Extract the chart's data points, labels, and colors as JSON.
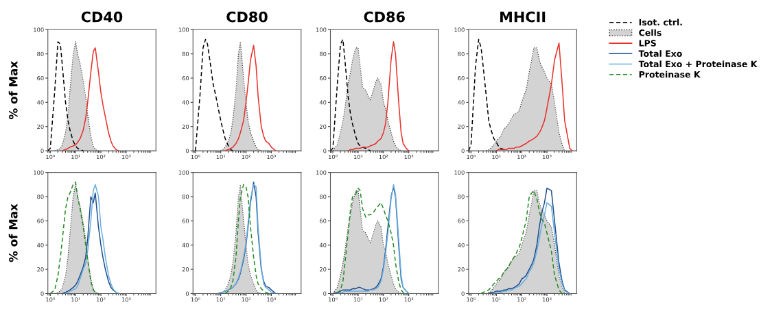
{
  "chart_data": [
    {
      "type": "line",
      "title": "CD40",
      "ylabel": "% of Max",
      "log": "x",
      "legend": "right",
      "x": [
        0.8,
        1,
        1.5,
        2,
        2.5,
        3,
        4,
        5,
        6,
        8,
        10,
        12,
        15,
        20,
        25,
        30,
        40,
        50,
        60,
        80,
        100,
        120,
        150,
        200,
        250,
        300,
        400,
        500
      ],
      "xlim": [
        0.8,
        15000
      ],
      "ylim": [
        0,
        100
      ],
      "xticks": [
        {
          "value": 1,
          "label": "10⁰"
        },
        {
          "value": 10,
          "label": "10¹"
        },
        {
          "value": 100,
          "label": "10²"
        },
        {
          "value": 1000,
          "label": "10³"
        }
      ],
      "yticks": [
        0,
        20,
        40,
        60,
        80,
        100
      ],
      "series": [
        {
          "name": "Isot. ctrl.",
          "line_style": "dashed",
          "color": "#000000",
          "values": [
            0,
            2,
            50,
            90,
            88,
            70,
            40,
            25,
            17,
            8,
            4,
            2,
            1,
            0,
            null,
            null,
            null,
            null,
            null,
            null,
            null,
            null,
            null,
            null,
            null,
            null,
            null,
            null
          ]
        },
        {
          "name": "Cells",
          "type": "area",
          "line_style": "dotted",
          "color": "#d3d3d3",
          "values": [
            null,
            null,
            0,
            1,
            2,
            5,
            15,
            30,
            50,
            80,
            90,
            80,
            72,
            58,
            45,
            30,
            12,
            4,
            1,
            0,
            null,
            null,
            null,
            null,
            null,
            null,
            null,
            null
          ]
        },
        {
          "name": "LPS",
          "line_style": "solid",
          "color": "#e8302a",
          "values": [
            null,
            null,
            null,
            null,
            null,
            0,
            1,
            2,
            3,
            4,
            5,
            7,
            10,
            17,
            27,
            40,
            65,
            82,
            85,
            65,
            48,
            38,
            28,
            15,
            8,
            4,
            1,
            0
          ]
        }
      ]
    },
    {
      "type": "line",
      "title": "CD80",
      "log": "x",
      "x": [
        1,
        1.5,
        2,
        2.5,
        3,
        4,
        5,
        6,
        8,
        10,
        12,
        15,
        20,
        25,
        30,
        40,
        50,
        60,
        80,
        100,
        120,
        150,
        200,
        250,
        300,
        400,
        500,
        600,
        800,
        1000,
        1500
      ],
      "xlim": [
        0.8,
        15000
      ],
      "ylim": [
        0,
        100
      ],
      "xticks": [
        {
          "value": 1,
          "label": "10⁰"
        },
        {
          "value": 10,
          "label": "10¹"
        },
        {
          "value": 100,
          "label": "10²"
        },
        {
          "value": 1000,
          "label": "10³"
        }
      ],
      "yticks": [
        0,
        20,
        40,
        60,
        80,
        100
      ],
      "series": [
        {
          "line_style": "dashed",
          "color": "#000000",
          "values": [
            0,
            45,
            85,
            92,
            88,
            70,
            55,
            48,
            35,
            25,
            18,
            10,
            4,
            1,
            0,
            null,
            null,
            null,
            null,
            null,
            null,
            null,
            null,
            null,
            null,
            null,
            null,
            null,
            null,
            null,
            null
          ]
        },
        {
          "type": "area",
          "line_style": "dotted",
          "color": "#d3d3d3",
          "values": [
            null,
            null,
            null,
            null,
            null,
            null,
            null,
            null,
            null,
            0,
            1,
            3,
            8,
            15,
            25,
            50,
            80,
            90,
            60,
            40,
            25,
            15,
            8,
            3,
            1,
            0,
            null,
            null,
            null,
            null,
            null
          ]
        },
        {
          "line_style": "solid",
          "color": "#e8302a",
          "values": [
            null,
            null,
            null,
            null,
            null,
            null,
            null,
            null,
            null,
            null,
            null,
            0,
            1,
            2,
            3,
            6,
            10,
            15,
            25,
            40,
            55,
            75,
            87,
            70,
            45,
            20,
            12,
            8,
            6,
            3,
            0
          ]
        }
      ]
    },
    {
      "type": "line",
      "title": "CD86",
      "log": "x",
      "x": [
        0.8,
        1,
        1.5,
        2,
        2.5,
        3,
        4,
        5,
        6,
        8,
        10,
        12,
        15,
        20,
        25,
        30,
        40,
        50,
        60,
        80,
        100,
        120,
        150,
        200,
        250,
        300,
        400,
        500,
        600,
        800,
        1000
      ],
      "xlim": [
        0.8,
        15000
      ],
      "ylim": [
        0,
        100
      ],
      "xticks": [
        {
          "value": 1,
          "label": "10⁰"
        },
        {
          "value": 10,
          "label": "10¹"
        },
        {
          "value": 100,
          "label": "10²"
        },
        {
          "value": 1000,
          "label": "10³"
        }
      ],
      "yticks": [
        0,
        20,
        40,
        60,
        80,
        100
      ],
      "series": [
        {
          "line_style": "dashed",
          "color": "#000000",
          "values": [
            0,
            2,
            55,
            88,
            92,
            75,
            45,
            30,
            22,
            12,
            6,
            4,
            3,
            2,
            1,
            0,
            null,
            null,
            null,
            null,
            null,
            null,
            null,
            null,
            null,
            null,
            null,
            null,
            null,
            null,
            null
          ]
        },
        {
          "type": "area",
          "line_style": "dotted",
          "color": "#d3d3d3",
          "values": [
            null,
            0,
            5,
            15,
            25,
            35,
            55,
            65,
            75,
            85,
            85,
            70,
            52,
            50,
            45,
            42,
            50,
            57,
            60,
            55,
            40,
            35,
            25,
            15,
            8,
            4,
            1,
            0,
            null,
            null,
            null
          ]
        },
        {
          "line_style": "solid",
          "color": "#e8302a",
          "values": [
            null,
            null,
            null,
            null,
            null,
            null,
            0,
            1,
            1,
            2,
            2,
            2,
            3,
            3,
            3,
            4,
            5,
            6,
            8,
            10,
            15,
            22,
            40,
            75,
            90,
            80,
            40,
            15,
            6,
            2,
            0
          ]
        }
      ]
    },
    {
      "type": "line",
      "title": "MHCII",
      "log": "x",
      "x": [
        0.8,
        1,
        1.5,
        2,
        2.5,
        3,
        4,
        5,
        6,
        8,
        10,
        12,
        15,
        20,
        25,
        30,
        40,
        50,
        60,
        80,
        100,
        120,
        150,
        200,
        250,
        300,
        400,
        500,
        600,
        800,
        1000,
        1500,
        2000,
        3000,
        4000,
        5000,
        8000,
        10000
      ],
      "xlim": [
        0.8,
        15000
      ],
      "ylim": [
        0,
        100
      ],
      "xticks": [
        {
          "value": 1,
          "label": "10⁰"
        },
        {
          "value": 10,
          "label": "10¹"
        },
        {
          "value": 100,
          "label": "10²"
        },
        {
          "value": 1000,
          "label": "10³"
        }
      ],
      "yticks": [
        0,
        20,
        40,
        60,
        80,
        100
      ],
      "series": [
        {
          "line_style": "dashed",
          "color": "#000000",
          "values": [
            0,
            5,
            70,
            92,
            85,
            70,
            45,
            25,
            18,
            10,
            7,
            4,
            2,
            1,
            0,
            null,
            null,
            null,
            null,
            null,
            null,
            null,
            null,
            null,
            null,
            null,
            null,
            null,
            null,
            null,
            null,
            null,
            null,
            null,
            null,
            null,
            null,
            null
          ]
        },
        {
          "type": "area",
          "line_style": "dotted",
          "color": "#d3d3d3",
          "values": [
            null,
            null,
            null,
            null,
            null,
            null,
            0,
            1,
            2,
            5,
            8,
            10,
            12,
            18,
            20,
            22,
            27,
            30,
            31,
            33,
            40,
            45,
            50,
            65,
            75,
            85,
            85,
            75,
            70,
            65,
            60,
            55,
            40,
            15,
            5,
            0,
            null,
            null
          ]
        },
        {
          "line_style": "solid",
          "color": "#e8302a",
          "values": [
            null,
            null,
            null,
            null,
            null,
            null,
            null,
            null,
            null,
            null,
            0,
            1,
            1,
            1,
            1,
            2,
            2,
            2,
            3,
            3,
            4,
            5,
            6,
            8,
            9,
            10,
            12,
            15,
            18,
            25,
            35,
            55,
            75,
            89,
            55,
            25,
            2,
            0
          ]
        }
      ]
    },
    {
      "type": "line",
      "ylabel": "% of Max",
      "log": "x",
      "legend": "right",
      "x": [
        1,
        1.5,
        2,
        2.5,
        3,
        4,
        5,
        6,
        8,
        10,
        12,
        15,
        20,
        25,
        30,
        40,
        50,
        60,
        80,
        100,
        120,
        150,
        200,
        250,
        300,
        400,
        500
      ],
      "xlim": [
        0.8,
        15000
      ],
      "ylim": [
        0,
        100
      ],
      "xticks": [
        {
          "value": 1,
          "label": "10⁰"
        },
        {
          "value": 10,
          "label": "10¹"
        },
        {
          "value": 100,
          "label": "10²"
        },
        {
          "value": 1000,
          "label": "10³"
        }
      ],
      "yticks": [
        0,
        20,
        40,
        60,
        80,
        100
      ],
      "series": [
        {
          "type": "area",
          "line_style": "dotted",
          "color": "#d3d3d3",
          "values": [
            null,
            0,
            1,
            2,
            5,
            15,
            30,
            50,
            80,
            90,
            80,
            72,
            58,
            45,
            30,
            12,
            4,
            1,
            0,
            null,
            null,
            null,
            null,
            null,
            null,
            null,
            null
          ]
        },
        {
          "name": "Total Exo",
          "line_style": "solid",
          "color": "#1f4e8c",
          "values": [
            null,
            null,
            null,
            null,
            0,
            1,
            2,
            3,
            5,
            7,
            10,
            15,
            22,
            30,
            45,
            80,
            75,
            83,
            55,
            40,
            30,
            20,
            10,
            5,
            3,
            1,
            0
          ]
        },
        {
          "name": "Total Exo + Proteinase K",
          "line_style": "solid",
          "color": "#6aaee0",
          "values": [
            null,
            null,
            null,
            null,
            null,
            0,
            1,
            2,
            3,
            4,
            6,
            12,
            20,
            25,
            35,
            60,
            85,
            90,
            80,
            55,
            45,
            30,
            15,
            8,
            4,
            1,
            0
          ]
        },
        {
          "name": "Proteinase K",
          "line_style": "dashed",
          "color": "#228b22",
          "values": [
            0,
            3,
            15,
            30,
            45,
            70,
            80,
            83,
            90,
            92,
            80,
            70,
            55,
            40,
            28,
            10,
            3,
            1,
            0,
            null,
            null,
            null,
            null,
            null,
            null,
            null,
            null
          ]
        }
      ]
    },
    {
      "type": "line",
      "log": "x",
      "x": [
        8,
        10,
        12,
        15,
        20,
        25,
        30,
        40,
        50,
        60,
        80,
        100,
        120,
        150,
        200,
        250,
        300,
        400,
        500,
        600,
        800,
        1000,
        1500
      ],
      "xlim": [
        0.8,
        15000
      ],
      "ylim": [
        0,
        100
      ],
      "xticks": [
        {
          "value": 1,
          "label": "10⁰"
        },
        {
          "value": 10,
          "label": "10¹"
        },
        {
          "value": 100,
          "label": "10²"
        },
        {
          "value": 1000,
          "label": "10³"
        }
      ],
      "yticks": [
        0,
        20,
        40,
        60,
        80,
        100
      ],
      "series": [
        {
          "type": "area",
          "line_style": "dotted",
          "color": "#d3d3d3",
          "values": [
            null,
            0,
            1,
            3,
            8,
            15,
            25,
            50,
            80,
            90,
            60,
            40,
            25,
            15,
            8,
            3,
            1,
            0,
            null,
            null,
            null,
            null,
            null
          ]
        },
        {
          "line_style": "solid",
          "color": "#1f4e8c",
          "values": [
            0,
            1,
            1,
            2,
            3,
            4,
            5,
            8,
            12,
            17,
            28,
            40,
            55,
            75,
            92,
            80,
            50,
            20,
            10,
            6,
            5,
            3,
            0
          ]
        },
        {
          "line_style": "solid",
          "color": "#6aaee0",
          "values": [
            0,
            1,
            1,
            2,
            3,
            4,
            5,
            8,
            13,
            18,
            30,
            42,
            58,
            78,
            90,
            88,
            55,
            22,
            8,
            5,
            3,
            1,
            0
          ]
        },
        {
          "line_style": "dashed",
          "color": "#228b22",
          "values": [
            null,
            null,
            null,
            0,
            2,
            5,
            10,
            30,
            60,
            80,
            90,
            88,
            80,
            55,
            30,
            15,
            8,
            4,
            2,
            1,
            0,
            null,
            null
          ]
        }
      ]
    },
    {
      "type": "line",
      "log": "x",
      "x": [
        1,
        1.5,
        2,
        2.5,
        3,
        4,
        5,
        6,
        8,
        10,
        12,
        15,
        20,
        25,
        30,
        40,
        50,
        60,
        80,
        100,
        120,
        150,
        200,
        250,
        300,
        400,
        500,
        600,
        800,
        1000
      ],
      "xlim": [
        0.8,
        15000
      ],
      "ylim": [
        0,
        100
      ],
      "xticks": [
        {
          "value": 1,
          "label": "10⁰"
        },
        {
          "value": 10,
          "label": "10¹"
        },
        {
          "value": 100,
          "label": "10²"
        },
        {
          "value": 1000,
          "label": "10³"
        }
      ],
      "yticks": [
        0,
        20,
        40,
        60,
        80,
        100
      ],
      "series": [
        {
          "type": "area",
          "line_style": "dotted",
          "color": "#d3d3d3",
          "values": [
            0,
            5,
            15,
            25,
            35,
            55,
            65,
            75,
            85,
            85,
            70,
            52,
            50,
            45,
            42,
            50,
            57,
            60,
            55,
            40,
            35,
            25,
            15,
            8,
            4,
            1,
            0,
            null,
            null,
            null
          ]
        },
        {
          "line_style": "solid",
          "color": "#1f4e8c",
          "values": [
            0,
            1,
            2,
            3,
            3,
            3,
            3,
            4,
            4,
            5,
            5,
            4,
            3,
            3,
            3,
            4,
            5,
            7,
            12,
            22,
            35,
            55,
            80,
            88,
            80,
            40,
            12,
            5,
            2,
            0
          ]
        },
        {
          "line_style": "solid",
          "color": "#6aaee0",
          "values": [
            null,
            0,
            1,
            1,
            2,
            2,
            2,
            2,
            2,
            2,
            2,
            2,
            2,
            2,
            3,
            3,
            4,
            5,
            10,
            20,
            32,
            50,
            78,
            90,
            82,
            45,
            15,
            5,
            2,
            0
          ]
        },
        {
          "line_style": "dashed",
          "color": "#228b22",
          "values": [
            null,
            0,
            3,
            10,
            25,
            50,
            70,
            80,
            82,
            87,
            85,
            70,
            63,
            65,
            65,
            67,
            70,
            72,
            75,
            70,
            65,
            60,
            50,
            40,
            25,
            10,
            3,
            1,
            0,
            null
          ]
        }
      ]
    },
    {
      "type": "line",
      "log": "x",
      "x": [
        2.5,
        3,
        4,
        5,
        6,
        8,
        10,
        12,
        15,
        20,
        25,
        30,
        40,
        50,
        60,
        80,
        100,
        120,
        150,
        200,
        250,
        300,
        400,
        500,
        600,
        800,
        1000,
        1500,
        2000,
        3000,
        4000,
        5000,
        8000
      ],
      "xlim": [
        0.8,
        15000
      ],
      "ylim": [
        0,
        100
      ],
      "xticks": [
        {
          "value": 1,
          "label": "10⁰"
        },
        {
          "value": 10,
          "label": "10¹"
        },
        {
          "value": 100,
          "label": "10²"
        },
        {
          "value": 1000,
          "label": "10³"
        }
      ],
      "yticks": [
        0,
        20,
        40,
        60,
        80,
        100
      ],
      "series": [
        {
          "type": "area",
          "line_style": "dotted",
          "color": "#d3d3d3",
          "values": [
            null,
            null,
            0,
            1,
            2,
            5,
            8,
            10,
            12,
            18,
            20,
            22,
            27,
            30,
            31,
            33,
            40,
            45,
            50,
            65,
            75,
            85,
            85,
            75,
            70,
            65,
            60,
            55,
            40,
            15,
            5,
            0,
            null
          ]
        },
        {
          "line_style": "solid",
          "color": "#1f4e8c",
          "values": [
            null,
            null,
            null,
            0,
            1,
            1,
            2,
            2,
            2,
            3,
            3,
            4,
            4,
            5,
            6,
            8,
            12,
            13,
            15,
            20,
            24,
            28,
            40,
            55,
            65,
            75,
            87,
            85,
            60,
            25,
            10,
            3,
            0
          ]
        },
        {
          "line_style": "solid",
          "color": "#6aaee0",
          "values": [
            null,
            null,
            null,
            null,
            null,
            0,
            1,
            1,
            1,
            2,
            2,
            3,
            3,
            4,
            5,
            6,
            8,
            10,
            12,
            18,
            21,
            25,
            35,
            45,
            55,
            65,
            75,
            72,
            50,
            20,
            8,
            2,
            0
          ]
        },
        {
          "line_style": "dashed",
          "color": "#228b22",
          "values": [
            0,
            1,
            2,
            3,
            5,
            8,
            10,
            12,
            13,
            18,
            20,
            22,
            27,
            30,
            33,
            38,
            45,
            52,
            60,
            80,
            83,
            85,
            78,
            68,
            62,
            58,
            50,
            35,
            15,
            3,
            0,
            null,
            null
          ]
        }
      ]
    }
  ]
}
